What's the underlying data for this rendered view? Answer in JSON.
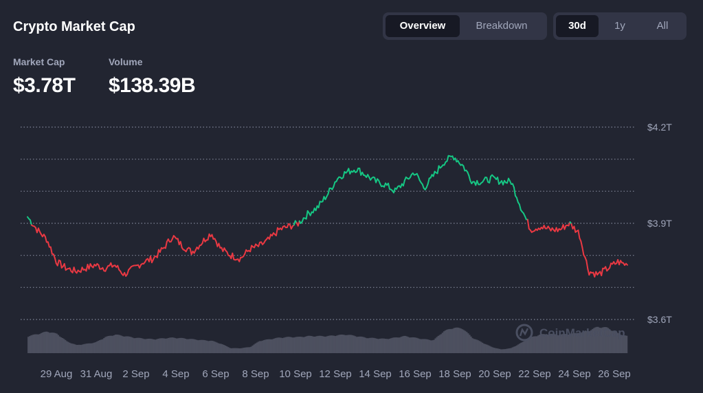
{
  "header": {
    "title": "Crypto Market Cap",
    "view_tabs": [
      {
        "label": "Overview",
        "active": true
      },
      {
        "label": "Breakdown",
        "active": false
      }
    ],
    "range_tabs": [
      {
        "label": "30d",
        "active": true
      },
      {
        "label": "1y",
        "active": false
      },
      {
        "label": "All",
        "active": false
      }
    ]
  },
  "stats": {
    "market_cap_label": "Market Cap",
    "market_cap_value": "$3.78T",
    "volume_label": "Volume",
    "volume_value": "$138.39B"
  },
  "watermark": "CoinMarketCap",
  "colors": {
    "background": "#222531",
    "up": "#16c784",
    "down": "#ea3943",
    "grid": "#a1a7bb",
    "volume": "#6b7080"
  },
  "chart_data": {
    "type": "line",
    "title": "",
    "xlabel": "",
    "ylabel": "",
    "ylim": [
      3.6,
      4.2
    ],
    "y_ticks": [
      3.6,
      3.7,
      3.8,
      3.9,
      4.0,
      4.1,
      4.2
    ],
    "y_tick_labels": [
      "$3.6T",
      "",
      "",
      "$3.9T",
      "",
      "",
      "$4.2T"
    ],
    "x_tick_labels": [
      "29 Aug",
      "31 Aug",
      "2 Sep",
      "4 Sep",
      "6 Sep",
      "8 Sep",
      "10 Sep",
      "12 Sep",
      "14 Sep",
      "16 Sep",
      "18 Sep",
      "20 Sep",
      "22 Sep",
      "24 Sep",
      "26 Sep"
    ],
    "baseline": 3.9,
    "grid": true,
    "series": [
      {
        "x": [
          "27 Aug",
          "27 Aug",
          "28 Aug",
          "28 Aug",
          "29 Aug",
          "29 Aug",
          "30 Aug",
          "30 Aug",
          "31 Aug",
          "31 Aug",
          "1 Sep",
          "1 Sep",
          "2 Sep",
          "2 Sep",
          "3 Sep",
          "3 Sep",
          "4 Sep",
          "4 Sep",
          "5 Sep",
          "5 Sep",
          "6 Sep",
          "6 Sep",
          "7 Sep",
          "7 Sep",
          "8 Sep",
          "8 Sep",
          "9 Sep",
          "9 Sep",
          "10 Sep",
          "10 Sep",
          "11 Sep",
          "11 Sep",
          "12 Sep",
          "12 Sep",
          "13 Sep",
          "13 Sep",
          "14 Sep",
          "14 Sep",
          "15 Sep",
          "15 Sep",
          "16 Sep",
          "16 Sep",
          "17 Sep",
          "17 Sep",
          "18 Sep",
          "18 Sep",
          "19 Sep",
          "19 Sep",
          "20 Sep",
          "20 Sep",
          "21 Sep",
          "21 Sep",
          "22 Sep",
          "22 Sep",
          "23 Sep",
          "23 Sep",
          "24 Sep",
          "24 Sep",
          "25 Sep",
          "25 Sep",
          "26 Sep",
          "26 Sep",
          "27 Sep"
        ],
        "values": [
          3.92,
          3.88,
          3.85,
          3.78,
          3.76,
          3.75,
          3.76,
          3.77,
          3.76,
          3.77,
          3.74,
          3.76,
          3.78,
          3.79,
          3.82,
          3.86,
          3.83,
          3.81,
          3.84,
          3.87,
          3.82,
          3.8,
          3.79,
          3.82,
          3.83,
          3.85,
          3.88,
          3.89,
          3.9,
          3.93,
          3.95,
          3.99,
          4.04,
          4.06,
          4.07,
          4.05,
          4.03,
          4.02,
          4.0,
          4.03,
          4.06,
          4.01,
          4.05,
          4.09,
          4.11,
          4.08,
          4.03,
          4.03,
          4.04,
          4.03,
          4.03,
          3.95,
          3.88,
          3.89,
          3.88,
          3.88,
          3.9,
          3.87,
          3.75,
          3.74,
          3.76,
          3.78,
          3.77
        ]
      }
    ],
    "volume": {
      "unit": "relative",
      "values": [
        0.55,
        0.62,
        0.7,
        0.62,
        0.38,
        0.26,
        0.3,
        0.35,
        0.52,
        0.6,
        0.55,
        0.5,
        0.47,
        0.45,
        0.48,
        0.5,
        0.48,
        0.45,
        0.42,
        0.4,
        0.3,
        0.16,
        0.16,
        0.2,
        0.4,
        0.45,
        0.5,
        0.52,
        0.52,
        0.55,
        0.55,
        0.55,
        0.58,
        0.6,
        0.55,
        0.5,
        0.48,
        0.46,
        0.5,
        0.55,
        0.5,
        0.45,
        0.42,
        0.7,
        0.82,
        0.8,
        0.5,
        0.35,
        0.2,
        0.12,
        0.16,
        0.32,
        0.5,
        0.6,
        0.62,
        0.6,
        0.62,
        0.65,
        0.72,
        0.85,
        0.82,
        0.65,
        0.55
      ]
    }
  }
}
